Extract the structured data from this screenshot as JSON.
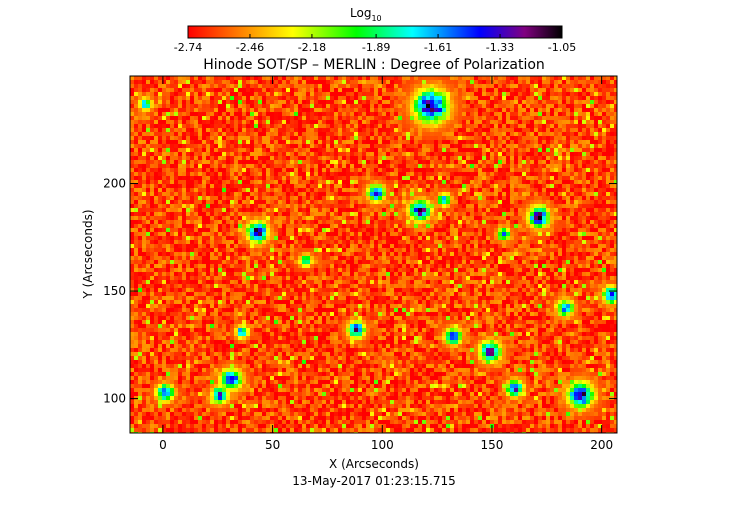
{
  "chart_data": {
    "type": "heatmap",
    "title": "Hinode SOT/SP – MERLIN : Degree of Polarization",
    "xlabel": "X (Arcseconds)",
    "ylabel": "Y (Arcseconds)",
    "timestamp": "13-May-2017 01:23:15.715",
    "xlim": [
      -15,
      207
    ],
    "ylim": [
      84,
      250
    ],
    "x_ticks": [
      0,
      50,
      100,
      150,
      200
    ],
    "x_tick_labels": [
      "0",
      "50",
      "100",
      "150",
      "200"
    ],
    "y_ticks": [
      100,
      150,
      200
    ],
    "y_tick_labels": [
      "100",
      "150",
      "200"
    ],
    "colorbar": {
      "title": "Log",
      "title_subscript": "10",
      "scale": "log10",
      "range": [
        -2.74,
        -1.05
      ],
      "tick_values": [
        -2.74,
        -2.46,
        -2.18,
        -1.89,
        -1.61,
        -1.33,
        -1.05
      ],
      "tick_labels": [
        "-2.74",
        "-2.46",
        "-2.18",
        "-1.89",
        "-1.61",
        "-1.33",
        "-1.05"
      ],
      "colormap": "rainbow",
      "colors": [
        "#ff0000",
        "#ff8000",
        "#ffff00",
        "#00ff00",
        "#00ffff",
        "#0000ff",
        "#800080",
        "#000000"
      ]
    },
    "background_level": -2.62,
    "features": [
      {
        "x": 43,
        "y": 178,
        "radius": 5,
        "peak": -1.2
      },
      {
        "x": 122,
        "y": 236,
        "radius": 8,
        "peak": -1.15
      },
      {
        "x": 88,
        "y": 133,
        "radius": 4,
        "peak": -1.3
      },
      {
        "x": 117,
        "y": 188,
        "radius": 5,
        "peak": -1.25
      },
      {
        "x": 97,
        "y": 196,
        "radius": 4,
        "peak": -1.3
      },
      {
        "x": 132,
        "y": 130,
        "radius": 4,
        "peak": -1.35
      },
      {
        "x": 149,
        "y": 123,
        "radius": 5,
        "peak": -1.3
      },
      {
        "x": 171,
        "y": 185,
        "radius": 5,
        "peak": -1.25
      },
      {
        "x": 190,
        "y": 103,
        "radius": 6,
        "peak": -1.2
      },
      {
        "x": 204,
        "y": 149,
        "radius": 4,
        "peak": -1.3
      },
      {
        "x": 1,
        "y": 104,
        "radius": 4,
        "peak": -1.3
      },
      {
        "x": 26,
        "y": 103,
        "radius": 4,
        "peak": -1.35
      },
      {
        "x": 31,
        "y": 110,
        "radius": 5,
        "peak": -1.35
      },
      {
        "x": 160,
        "y": 106,
        "radius": 4,
        "peak": -1.35
      },
      {
        "x": 183,
        "y": 143,
        "radius": 4,
        "peak": -1.5
      },
      {
        "x": 128,
        "y": 193,
        "radius": 3,
        "peak": -1.5
      },
      {
        "x": 155,
        "y": 177,
        "radius": 3,
        "peak": -1.55
      },
      {
        "x": 36,
        "y": 132,
        "radius": 3,
        "peak": -1.55
      },
      {
        "x": -8,
        "y": 237,
        "radius": 3,
        "peak": -1.6
      },
      {
        "x": 65,
        "y": 165,
        "radius": 3,
        "peak": -1.7
      }
    ]
  }
}
